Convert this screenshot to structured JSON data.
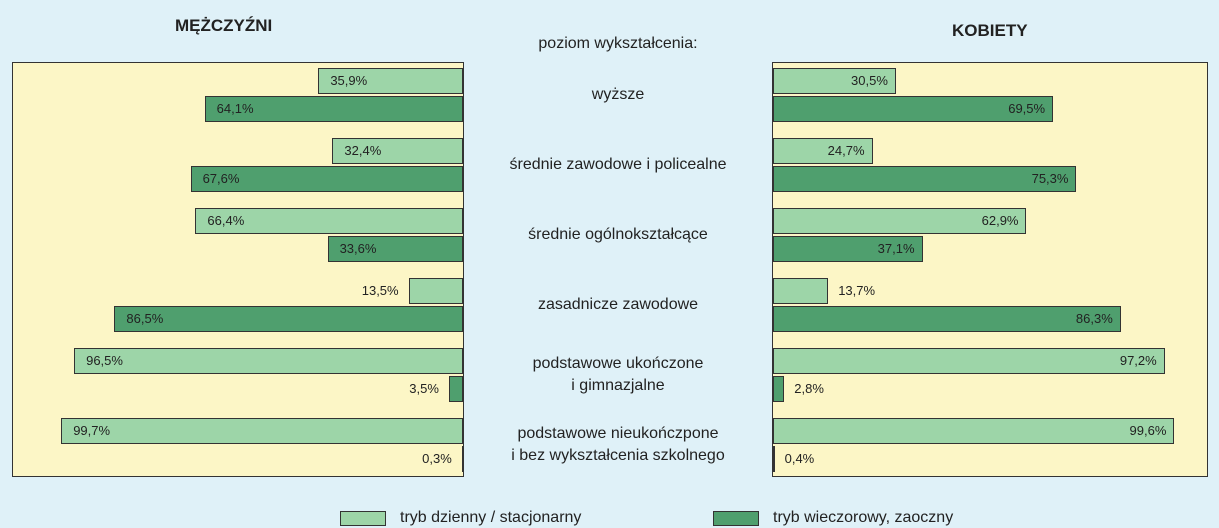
{
  "chart_data": {
    "type": "butterfly",
    "left_title": "MĘŻCZYŹNI",
    "right_title": "KOBIETY",
    "category_title": "poziom wykształcenia:",
    "categories": [
      "wyższe",
      "średnie zawodowe i policealne",
      "średnie ogólnokształcące",
      "zasadnicze zawodowe",
      "podstawowe ukończone\ni gimnazjalne",
      "podstawowe nieukończpone\ni bez wykształcenia szkolnego"
    ],
    "xlim": [
      0,
      100
    ],
    "series": [
      {
        "name": "tryb dzienny / stacjonarny",
        "color": "#9dd5a8",
        "values_left": [
          35.9,
          32.4,
          66.4,
          13.5,
          96.5,
          99.7
        ],
        "value_labels_left": [
          "35,9%",
          "32,4%",
          "66,4%",
          "13,5%",
          "96,5%",
          "99,7%"
        ],
        "values_right": [
          30.5,
          24.7,
          62.9,
          13.7,
          97.2,
          99.6
        ],
        "value_labels_right": [
          "30,5%",
          "24,7%",
          "62,9%",
          "13,7%",
          "97,2%",
          "99,6%"
        ]
      },
      {
        "name": "tryb wieczorowy, zaoczny",
        "color": "#4f9f6e",
        "values_left": [
          64.1,
          67.6,
          33.6,
          86.5,
          3.5,
          0.3
        ],
        "value_labels_left": [
          "64,1%",
          "67,6%",
          "33,6%",
          "86,5%",
          "3,5%",
          "0,3%"
        ],
        "values_right": [
          69.5,
          75.3,
          37.1,
          86.3,
          2.8,
          0.4
        ],
        "value_labels_right": [
          "69,5%",
          "75,3%",
          "37,1%",
          "86,3%",
          "2,8%",
          "0,4%"
        ]
      }
    ]
  }
}
